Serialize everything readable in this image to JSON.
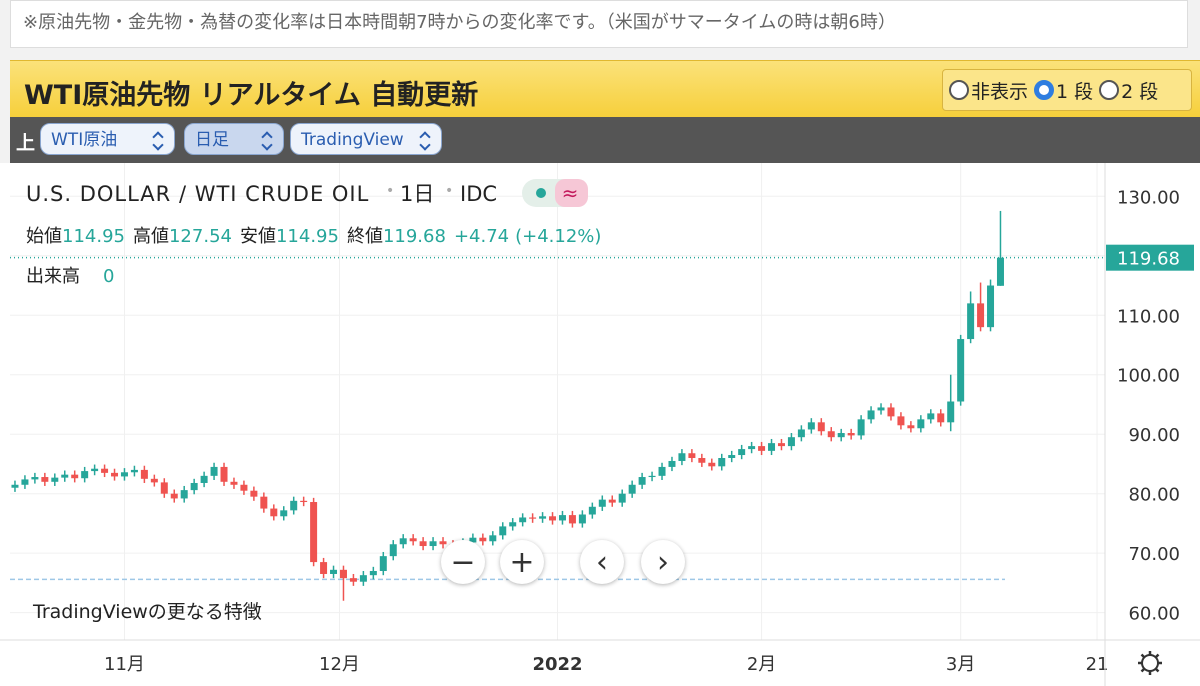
{
  "notice": "※原油先物・金先物・為替の変化率は日本時間朝7時からの変化率です。（米国がサマータイムの時は朝6時）",
  "header": {
    "title": "WTI原油先物 リアルタイム 自動更新",
    "options": [
      "非表示",
      "1 段",
      "2 段"
    ],
    "selected": 1
  },
  "toolbar": {
    "label": "上",
    "selects": [
      "WTI原油",
      "日足",
      "TradingView"
    ]
  },
  "chart_data": {
    "type": "candlestick",
    "title": "U.S. DOLLAR / WTI CRUDE OIL",
    "interval": "1日",
    "source": "IDC",
    "ohlc_labels": [
      "始値",
      "高値",
      "安値",
      "終値"
    ],
    "change": "+4.74",
    "change_pct": "(+4.12%)",
    "volume_label": "出来高",
    "volume": 0,
    "up_color": "#26a69a",
    "down_color": "#ef5350",
    "reference_line": 65.6,
    "promo": "TradingViewの更なる特徴",
    "xlim": [
      -0.5,
      109.5
    ],
    "xticks": [
      {
        "value": 11,
        "label": "11月"
      },
      {
        "value": 32.6,
        "label": "12月"
      },
      {
        "value": 54.5,
        "label": "2022"
      },
      {
        "value": 75,
        "label": "2月"
      },
      {
        "value": 95,
        "label": "3月"
      },
      {
        "value": 108.7,
        "label": "21"
      }
    ],
    "ylim": [
      55.4,
      135.6
    ],
    "yticks": [
      {
        "value": 60,
        "label": "60.00"
      },
      {
        "value": 70,
        "label": "70.00"
      },
      {
        "value": 80,
        "label": "80.00"
      },
      {
        "value": 90,
        "label": "90.00"
      },
      {
        "value": 100,
        "label": "100.00"
      },
      {
        "value": 110,
        "label": "110.00"
      },
      {
        "value": 120,
        "label": "120.00"
      },
      {
        "value": 130,
        "label": "130.00"
      }
    ],
    "candles": [
      [
        81.0,
        82.2,
        80.3,
        81.5
      ],
      [
        81.5,
        83.1,
        80.8,
        82.4
      ],
      [
        82.4,
        83.5,
        81.7,
        82.8
      ],
      [
        82.8,
        83.5,
        81.3,
        82.0
      ],
      [
        82.0,
        83.4,
        81.3,
        82.7
      ],
      [
        82.7,
        83.9,
        82.0,
        83.2
      ],
      [
        83.2,
        83.9,
        81.9,
        82.6
      ],
      [
        82.6,
        84.5,
        81.9,
        83.8
      ],
      [
        83.8,
        84.9,
        83.1,
        84.2
      ],
      [
        84.2,
        84.9,
        82.8,
        83.5
      ],
      [
        83.5,
        84.2,
        82.2,
        82.9
      ],
      [
        82.9,
        84.3,
        82.2,
        83.6
      ],
      [
        83.6,
        84.7,
        82.9,
        84.0
      ],
      [
        84.0,
        84.7,
        81.8,
        82.5
      ],
      [
        82.5,
        83.2,
        81.2,
        81.9
      ],
      [
        81.9,
        82.6,
        79.3,
        80.0
      ],
      [
        80.0,
        80.7,
        78.5,
        79.2
      ],
      [
        79.2,
        81.3,
        78.5,
        80.6
      ],
      [
        80.6,
        82.5,
        79.9,
        81.8
      ],
      [
        81.8,
        83.7,
        81.1,
        83.0
      ],
      [
        83.0,
        85.2,
        82.3,
        84.5
      ],
      [
        84.5,
        85.2,
        81.3,
        82.0
      ],
      [
        82.0,
        82.7,
        80.8,
        81.5
      ],
      [
        81.5,
        82.2,
        79.8,
        80.5
      ],
      [
        80.5,
        81.2,
        78.8,
        79.5
      ],
      [
        79.5,
        80.2,
        76.8,
        77.5
      ],
      [
        77.5,
        78.2,
        75.5,
        76.2
      ],
      [
        76.2,
        77.9,
        75.5,
        77.2
      ],
      [
        77.2,
        79.5,
        76.5,
        78.8
      ],
      [
        78.8,
        79.5,
        77.9,
        78.6
      ],
      [
        78.6,
        79.3,
        67.8,
        68.5
      ],
      [
        68.5,
        69.2,
        65.8,
        66.5
      ],
      [
        66.5,
        67.9,
        65.8,
        67.2
      ],
      [
        67.2,
        67.9,
        62.0,
        65.8
      ],
      [
        65.8,
        66.5,
        64.5,
        65.2
      ],
      [
        65.2,
        67.0,
        64.5,
        66.3
      ],
      [
        66.3,
        67.7,
        65.6,
        67.0
      ],
      [
        67.0,
        70.2,
        66.3,
        69.5
      ],
      [
        69.5,
        72.2,
        68.8,
        71.5
      ],
      [
        71.5,
        73.2,
        70.8,
        72.5
      ],
      [
        72.5,
        73.2,
        71.3,
        72.0
      ],
      [
        72.0,
        72.7,
        70.5,
        71.2
      ],
      [
        71.2,
        72.7,
        70.5,
        72.0
      ],
      [
        72.0,
        72.7,
        70.8,
        71.5
      ],
      [
        71.5,
        72.2,
        70.1,
        70.8
      ],
      [
        70.8,
        72.5,
        70.1,
        71.8
      ],
      [
        71.8,
        73.3,
        71.1,
        72.6
      ],
      [
        72.6,
        73.3,
        71.3,
        72.0
      ],
      [
        72.0,
        73.7,
        71.3,
        73.0
      ],
      [
        73.0,
        75.2,
        72.3,
        74.5
      ],
      [
        74.5,
        75.9,
        73.8,
        75.2
      ],
      [
        75.2,
        76.7,
        74.5,
        76.0
      ],
      [
        76.0,
        76.7,
        75.1,
        75.8
      ],
      [
        75.8,
        76.9,
        75.1,
        76.2
      ],
      [
        76.2,
        76.9,
        74.8,
        75.5
      ],
      [
        75.5,
        77.1,
        74.8,
        76.4
      ],
      [
        76.4,
        77.1,
        74.3,
        75.0
      ],
      [
        75.0,
        77.2,
        74.3,
        76.5
      ],
      [
        76.5,
        78.5,
        75.8,
        77.8
      ],
      [
        77.8,
        79.7,
        77.1,
        79.0
      ],
      [
        79.0,
        79.7,
        77.8,
        78.5
      ],
      [
        78.5,
        80.7,
        77.8,
        80.0
      ],
      [
        80.0,
        82.2,
        79.3,
        81.5
      ],
      [
        81.5,
        83.5,
        80.8,
        82.8
      ],
      [
        82.8,
        83.7,
        82.1,
        83.0
      ],
      [
        83.0,
        85.2,
        82.3,
        84.5
      ],
      [
        84.5,
        86.2,
        83.8,
        85.5
      ],
      [
        85.5,
        87.5,
        84.8,
        86.8
      ],
      [
        86.8,
        87.5,
        85.3,
        86.0
      ],
      [
        86.0,
        86.7,
        84.5,
        85.2
      ],
      [
        85.2,
        85.9,
        83.9,
        84.6
      ],
      [
        84.6,
        86.7,
        83.9,
        86.0
      ],
      [
        86.0,
        87.2,
        85.3,
        86.5
      ],
      [
        86.5,
        88.2,
        85.8,
        87.5
      ],
      [
        87.5,
        88.7,
        86.8,
        88.0
      ],
      [
        88.0,
        88.7,
        86.5,
        87.2
      ],
      [
        87.2,
        89.2,
        86.5,
        88.5
      ],
      [
        88.5,
        89.2,
        87.3,
        88.0
      ],
      [
        88.0,
        90.2,
        87.3,
        89.5
      ],
      [
        89.5,
        91.5,
        88.8,
        90.8
      ],
      [
        90.8,
        92.7,
        90.1,
        92.0
      ],
      [
        92.0,
        92.7,
        89.8,
        90.5
      ],
      [
        90.5,
        91.2,
        88.8,
        89.5
      ],
      [
        89.5,
        90.9,
        88.8,
        90.2
      ],
      [
        90.2,
        90.9,
        89.1,
        89.8
      ],
      [
        89.8,
        93.2,
        89.1,
        92.5
      ],
      [
        92.5,
        94.7,
        91.8,
        94.0
      ],
      [
        94.0,
        95.2,
        93.3,
        94.5
      ],
      [
        94.5,
        95.2,
        92.3,
        93.0
      ],
      [
        93.0,
        93.7,
        90.8,
        91.5
      ],
      [
        91.5,
        92.2,
        90.3,
        91.0
      ],
      [
        91.0,
        93.2,
        90.3,
        92.5
      ],
      [
        92.5,
        94.2,
        91.8,
        93.5
      ],
      [
        93.5,
        94.2,
        91.3,
        92.0
      ],
      [
        92.0,
        100.0,
        90.5,
        95.5
      ],
      [
        95.5,
        106.7,
        94.8,
        106.0
      ],
      [
        106.0,
        114.0,
        105.3,
        112.0
      ],
      [
        112.0,
        115.5,
        107.3,
        108.0
      ],
      [
        108.0,
        116.0,
        107.3,
        115.0
      ],
      [
        114.95,
        127.54,
        114.95,
        119.68
      ]
    ]
  }
}
